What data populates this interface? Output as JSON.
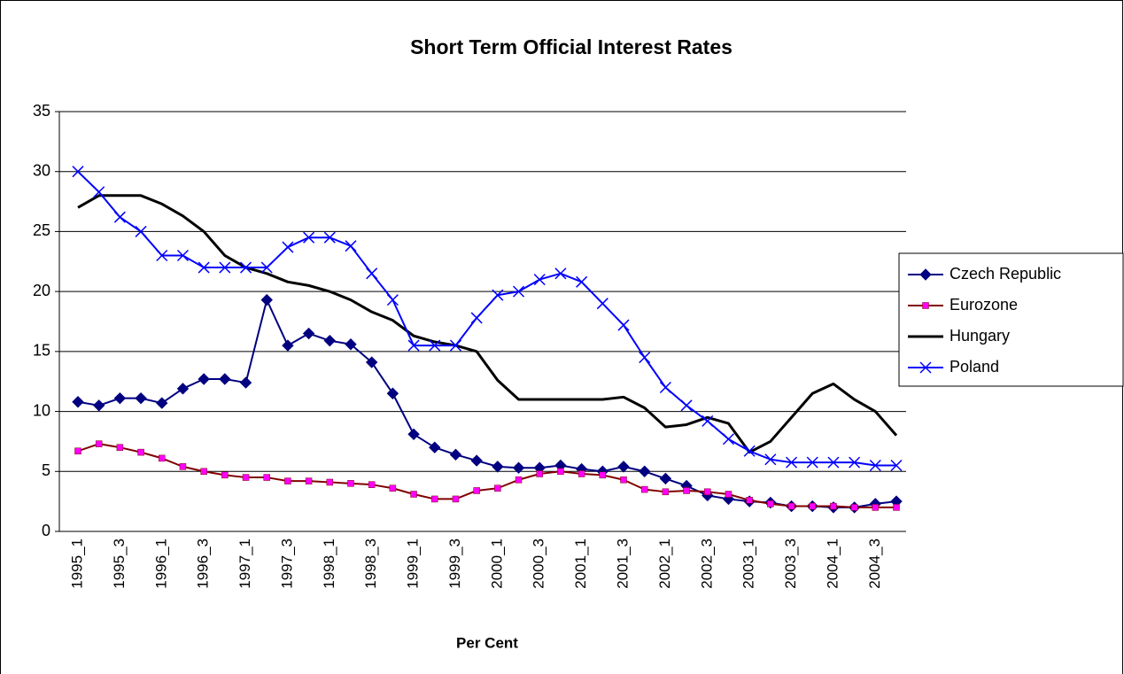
{
  "chart_data": {
    "type": "line",
    "title": "Short Term Official Interest Rates",
    "x_label": "Per Cent",
    "categories": [
      "1995_1",
      null,
      "1995_3",
      null,
      "1996_1",
      null,
      "1996_3",
      null,
      "1997_1",
      null,
      "1997_3",
      null,
      "1998_1",
      null,
      "1998_3",
      null,
      "1999_1",
      null,
      "1999_3",
      null,
      "2000_1",
      null,
      "2000_3",
      null,
      "2001_1",
      null,
      "2001_3",
      null,
      "2002_1",
      null,
      "2002_3",
      null,
      "2003_1",
      null,
      "2003_3",
      null,
      "2004_1",
      null,
      "2004_3",
      null
    ],
    "ylim": [
      0,
      35
    ],
    "yticks": [
      0,
      5,
      10,
      15,
      20,
      25,
      30,
      35
    ],
    "grid": true,
    "legend": "right",
    "series": [
      {
        "name": "Czech Republic",
        "color": "#000080",
        "marker": "diamond",
        "marker_color": "#000080",
        "values": [
          10.8,
          10.5,
          11.1,
          11.1,
          10.7,
          11.9,
          12.7,
          12.7,
          12.4,
          19.3,
          15.5,
          16.5,
          15.9,
          15.6,
          14.1,
          11.5,
          8.1,
          7.0,
          6.4,
          5.9,
          5.4,
          5.3,
          5.3,
          5.5,
          5.2,
          5.0,
          5.4,
          5.0,
          4.4,
          3.8,
          3.0,
          2.7,
          2.5,
          2.4,
          2.1,
          2.1,
          2.0,
          2.0,
          2.3,
          2.5
        ]
      },
      {
        "name": "Eurozone",
        "color": "#800000",
        "marker": "square",
        "marker_color": "#ff00ff",
        "values": [
          6.7,
          7.3,
          7.0,
          6.6,
          6.1,
          5.4,
          5.0,
          4.7,
          4.5,
          4.5,
          4.2,
          4.2,
          4.1,
          4.0,
          3.9,
          3.6,
          3.1,
          2.7,
          2.7,
          3.4,
          3.6,
          4.3,
          4.8,
          5.0,
          4.8,
          4.7,
          4.3,
          3.5,
          3.3,
          3.4,
          3.3,
          3.1,
          2.6,
          2.3,
          2.1,
          2.1,
          2.1,
          2.0,
          2.0,
          2.0
        ]
      },
      {
        "name": "Hungary",
        "color": "#000000",
        "marker": "none",
        "marker_color": "#000000",
        "values": [
          27,
          28,
          28,
          28,
          27.3,
          26.3,
          25,
          23,
          22,
          21.5,
          20.8,
          20.5,
          20,
          19.3,
          18.3,
          17.6,
          16.3,
          15.8,
          15.5,
          15,
          12.6,
          11,
          11,
          11,
          11,
          11,
          11.2,
          10.3,
          8.7,
          8.9,
          9.5,
          9,
          6.6,
          7.5,
          9.5,
          11.5,
          12.3,
          11,
          10,
          8
        ]
      },
      {
        "name": "Poland",
        "color": "#0000ff",
        "marker": "x",
        "marker_color": "#0000ff",
        "values": [
          30,
          28.3,
          26.2,
          25,
          23,
          23,
          22,
          22,
          22,
          22,
          23.7,
          24.5,
          24.5,
          23.8,
          21.5,
          19.3,
          15.5,
          15.5,
          15.5,
          17.8,
          19.7,
          20,
          21,
          21.5,
          20.8,
          19,
          17.2,
          14.5,
          12,
          10.5,
          9.2,
          7.7,
          6.7,
          6,
          5.75,
          5.75,
          5.75,
          5.75,
          5.5,
          5.5
        ]
      }
    ]
  }
}
